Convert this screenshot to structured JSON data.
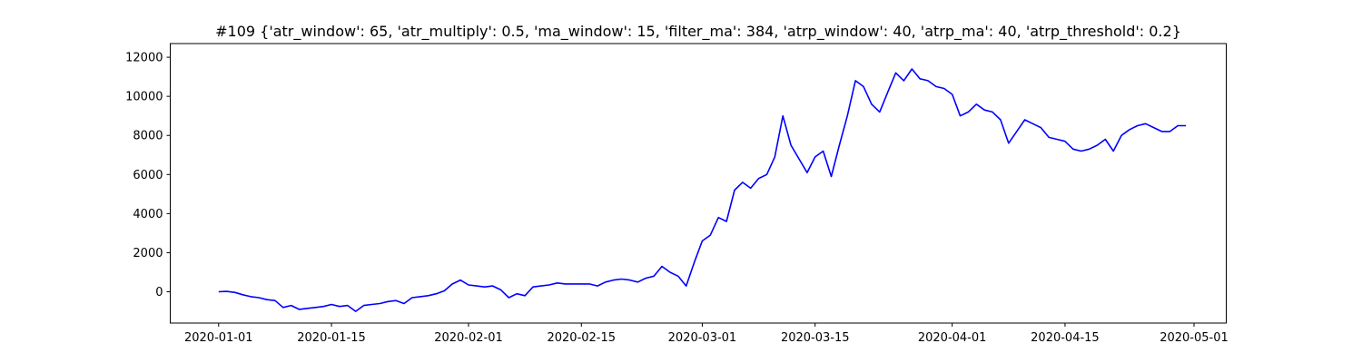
{
  "chart_data": {
    "type": "line",
    "title": "#109 {'atr_window': 65, 'atr_multiply': 0.5, 'ma_window': 15, 'filter_ma': 384, 'atrp_window': 40, 'atrp_ma': 40, 'atrp_threshold': 0.2}",
    "xlabel": "",
    "ylabel": "",
    "x_axis": "date",
    "xlim": [
      "2019-12-26",
      "2020-05-05"
    ],
    "ylim": [
      -1600,
      12700
    ],
    "grid": false,
    "x_ticks": [
      "2020-01-01",
      "2020-01-15",
      "2020-02-01",
      "2020-02-15",
      "2020-03-01",
      "2020-03-15",
      "2020-04-01",
      "2020-04-15",
      "2020-05-01"
    ],
    "y_ticks": [
      0,
      2000,
      4000,
      6000,
      8000,
      10000,
      12000
    ],
    "series": [
      {
        "color": "#0000ff",
        "x": [
          "2020-01-01",
          "2020-01-02",
          "2020-01-03",
          "2020-01-04",
          "2020-01-05",
          "2020-01-06",
          "2020-01-07",
          "2020-01-08",
          "2020-01-09",
          "2020-01-10",
          "2020-01-11",
          "2020-01-12",
          "2020-01-13",
          "2020-01-14",
          "2020-01-15",
          "2020-01-16",
          "2020-01-17",
          "2020-01-18",
          "2020-01-19",
          "2020-01-20",
          "2020-01-21",
          "2020-01-22",
          "2020-01-23",
          "2020-01-24",
          "2020-01-25",
          "2020-01-26",
          "2020-01-27",
          "2020-01-28",
          "2020-01-29",
          "2020-01-30",
          "2020-01-31",
          "2020-02-01",
          "2020-02-02",
          "2020-02-03",
          "2020-02-04",
          "2020-02-05",
          "2020-02-06",
          "2020-02-07",
          "2020-02-08",
          "2020-02-09",
          "2020-02-10",
          "2020-02-11",
          "2020-02-12",
          "2020-02-13",
          "2020-02-14",
          "2020-02-15",
          "2020-02-16",
          "2020-02-17",
          "2020-02-18",
          "2020-02-19",
          "2020-02-20",
          "2020-02-21",
          "2020-02-22",
          "2020-02-23",
          "2020-02-24",
          "2020-02-25",
          "2020-02-26",
          "2020-02-27",
          "2020-02-28",
          "2020-02-29",
          "2020-03-01",
          "2020-03-02",
          "2020-03-03",
          "2020-03-04",
          "2020-03-05",
          "2020-03-06",
          "2020-03-07",
          "2020-03-08",
          "2020-03-09",
          "2020-03-10",
          "2020-03-11",
          "2020-03-12",
          "2020-03-13",
          "2020-03-14",
          "2020-03-15",
          "2020-03-16",
          "2020-03-17",
          "2020-03-18",
          "2020-03-19",
          "2020-03-20",
          "2020-03-21",
          "2020-03-22",
          "2020-03-23",
          "2020-03-24",
          "2020-03-25",
          "2020-03-26",
          "2020-03-27",
          "2020-03-28",
          "2020-03-29",
          "2020-03-30",
          "2020-03-31",
          "2020-04-01",
          "2020-04-02",
          "2020-04-03",
          "2020-04-04",
          "2020-04-05",
          "2020-04-06",
          "2020-04-07",
          "2020-04-08",
          "2020-04-09",
          "2020-04-10",
          "2020-04-11",
          "2020-04-12",
          "2020-04-13",
          "2020-04-14",
          "2020-04-15",
          "2020-04-16",
          "2020-04-17",
          "2020-04-18",
          "2020-04-19",
          "2020-04-20",
          "2020-04-21",
          "2020-04-22",
          "2020-04-23",
          "2020-04-24",
          "2020-04-25",
          "2020-04-26",
          "2020-04-27",
          "2020-04-28",
          "2020-04-29",
          "2020-04-30"
        ],
        "y": [
          0,
          20,
          -30,
          -150,
          -250,
          -300,
          -400,
          -450,
          -800,
          -700,
          -900,
          -850,
          -800,
          -750,
          -650,
          -750,
          -700,
          -1000,
          -700,
          -650,
          -600,
          -500,
          -450,
          -600,
          -300,
          -250,
          -200,
          -100,
          50,
          400,
          600,
          350,
          300,
          250,
          300,
          100,
          -300,
          -100,
          -200,
          250,
          300,
          350,
          450,
          400,
          400,
          400,
          400,
          300,
          500,
          600,
          650,
          600,
          500,
          700,
          800,
          1300,
          1000,
          800,
          300,
          1500,
          2600,
          2900,
          3800,
          3600,
          5200,
          5600,
          5300,
          5800,
          6000,
          6900,
          9000,
          7500,
          6800,
          6100,
          6900,
          7200,
          5900,
          7500,
          9000,
          10800,
          10500,
          9600,
          9200,
          10200,
          11200,
          10800,
          11400,
          10900,
          10800,
          10500,
          10400,
          10100,
          9000,
          9200,
          9600,
          9300,
          9200,
          8800,
          7600,
          8200,
          8800,
          8600,
          8400,
          7900,
          7800,
          7700,
          7300,
          7200,
          7300,
          7500,
          7800,
          7200,
          8000,
          8300,
          8500,
          8600,
          8400,
          8200,
          8200,
          8500,
          8500
        ]
      }
    ]
  }
}
